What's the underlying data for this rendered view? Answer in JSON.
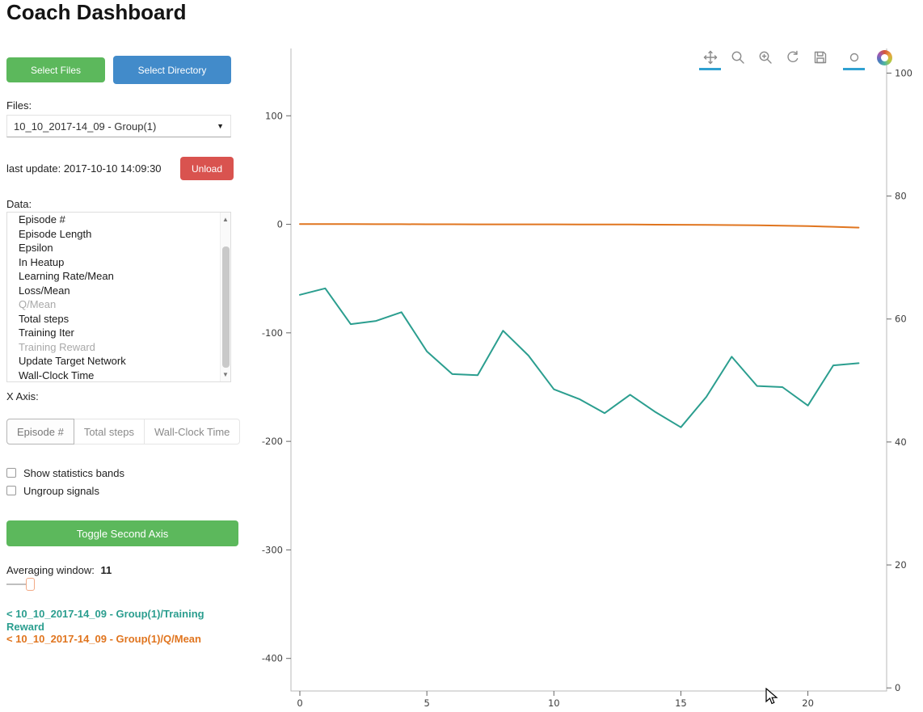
{
  "page_title": "Coach Dashboard",
  "colors": {
    "primary_green": "#5cb85c",
    "primary_blue": "#428bca",
    "danger_red": "#d9534f",
    "training_reward_teal": "#2b9e8f",
    "q_mean_orange": "#e0751f",
    "active_tool_underline": "#30a1d1"
  },
  "icons": {
    "dropdown_caret": "▼",
    "scroll_up": "▲",
    "scroll_down": "▼"
  },
  "sidebar": {
    "select_files_label": "Select Files",
    "select_directory_label": "Select Directory",
    "files_label": "Files:",
    "files_select_value": "10_10_2017-14_09 - Group(1)",
    "last_update": "last update: 2017-10-10 14:09:30",
    "unload_label": "Unload",
    "data_label": "Data:",
    "data_items": [
      {
        "label": "Episode #",
        "dimmed": false
      },
      {
        "label": "Episode Length",
        "dimmed": false
      },
      {
        "label": "Epsilon",
        "dimmed": false
      },
      {
        "label": "In Heatup",
        "dimmed": false
      },
      {
        "label": "Learning Rate/Mean",
        "dimmed": false
      },
      {
        "label": "Loss/Mean",
        "dimmed": false
      },
      {
        "label": "Q/Mean",
        "dimmed": true
      },
      {
        "label": "Total steps",
        "dimmed": false
      },
      {
        "label": "Training Iter",
        "dimmed": false
      },
      {
        "label": "Training Reward",
        "dimmed": true
      },
      {
        "label": "Update Target Network",
        "dimmed": false
      },
      {
        "label": "Wall-Clock Time",
        "dimmed": false
      }
    ],
    "x_axis_label": "X Axis:",
    "x_axis_options": [
      "Episode #",
      "Total steps",
      "Wall-Clock Time"
    ],
    "x_axis_selected": "Episode #",
    "checkboxes": [
      {
        "label": "Show statistics bands",
        "checked": false
      },
      {
        "label": "Ungroup signals",
        "checked": false
      }
    ],
    "toggle_second_axis_label": "Toggle Second Axis",
    "averaging_window_label": "Averaging window:",
    "averaging_window_value": "11",
    "legend": [
      {
        "label": "< 10_10_2017-14_09 - Group(1)/Training Reward",
        "color": "#2b9e8f"
      },
      {
        "label": "< 10_10_2017-14_09 - Group(1)/Q/Mean",
        "color": "#e0751f"
      }
    ]
  },
  "toolbar": {
    "tools": [
      {
        "name": "pan",
        "active": true
      },
      {
        "name": "box-zoom",
        "active": false
      },
      {
        "name": "wheel-zoom",
        "active": false
      },
      {
        "name": "reset",
        "active": false
      },
      {
        "name": "save",
        "active": false
      },
      {
        "name": "hover",
        "active": true
      }
    ],
    "logo": "bokeh-logo"
  },
  "chart_data": {
    "type": "line",
    "title": "",
    "xlabel": "",
    "ylabel": "",
    "grid": false,
    "legend_position": "left-sidebar",
    "x": [
      0,
      1,
      2,
      3,
      4,
      5,
      6,
      7,
      8,
      9,
      10,
      11,
      12,
      13,
      14,
      15,
      16,
      17,
      18,
      19,
      20,
      21,
      22
    ],
    "series": [
      {
        "name": "10_10_2017-14_09 - Group(1)/Training Reward",
        "color": "#2b9e8f",
        "axis": "left",
        "values": [
          -65,
          -59,
          -92,
          -89,
          -81,
          -117,
          -138,
          -139,
          -98,
          -121,
          -152,
          -161,
          -174,
          -157,
          -173,
          -187,
          -159,
          -122,
          -149,
          -150,
          -167,
          -130,
          -128
        ]
      },
      {
        "name": "10_10_2017-14_09 - Group(1)/Q/Mean",
        "color": "#e0751f",
        "axis": "left",
        "values": [
          0.2,
          0.2,
          0.15,
          0.1,
          0.1,
          0.05,
          0.05,
          0,
          0,
          0,
          -0.05,
          -0.1,
          -0.15,
          -0.2,
          -0.3,
          -0.4,
          -0.5,
          -0.7,
          -0.9,
          -1.2,
          -1.7,
          -2.3,
          -3
        ]
      }
    ],
    "x_range": [
      -0.35,
      23.1
    ],
    "x_ticks": [
      0,
      5,
      10,
      15,
      20
    ],
    "left_axis": {
      "ticks": [
        100,
        0,
        -100,
        -200,
        -300,
        -400
      ],
      "range": [
        -430,
        162
      ]
    },
    "right_axis": {
      "ticks": [
        0,
        20,
        40,
        60,
        80,
        100
      ],
      "range": [
        -0.5,
        104
      ]
    }
  }
}
